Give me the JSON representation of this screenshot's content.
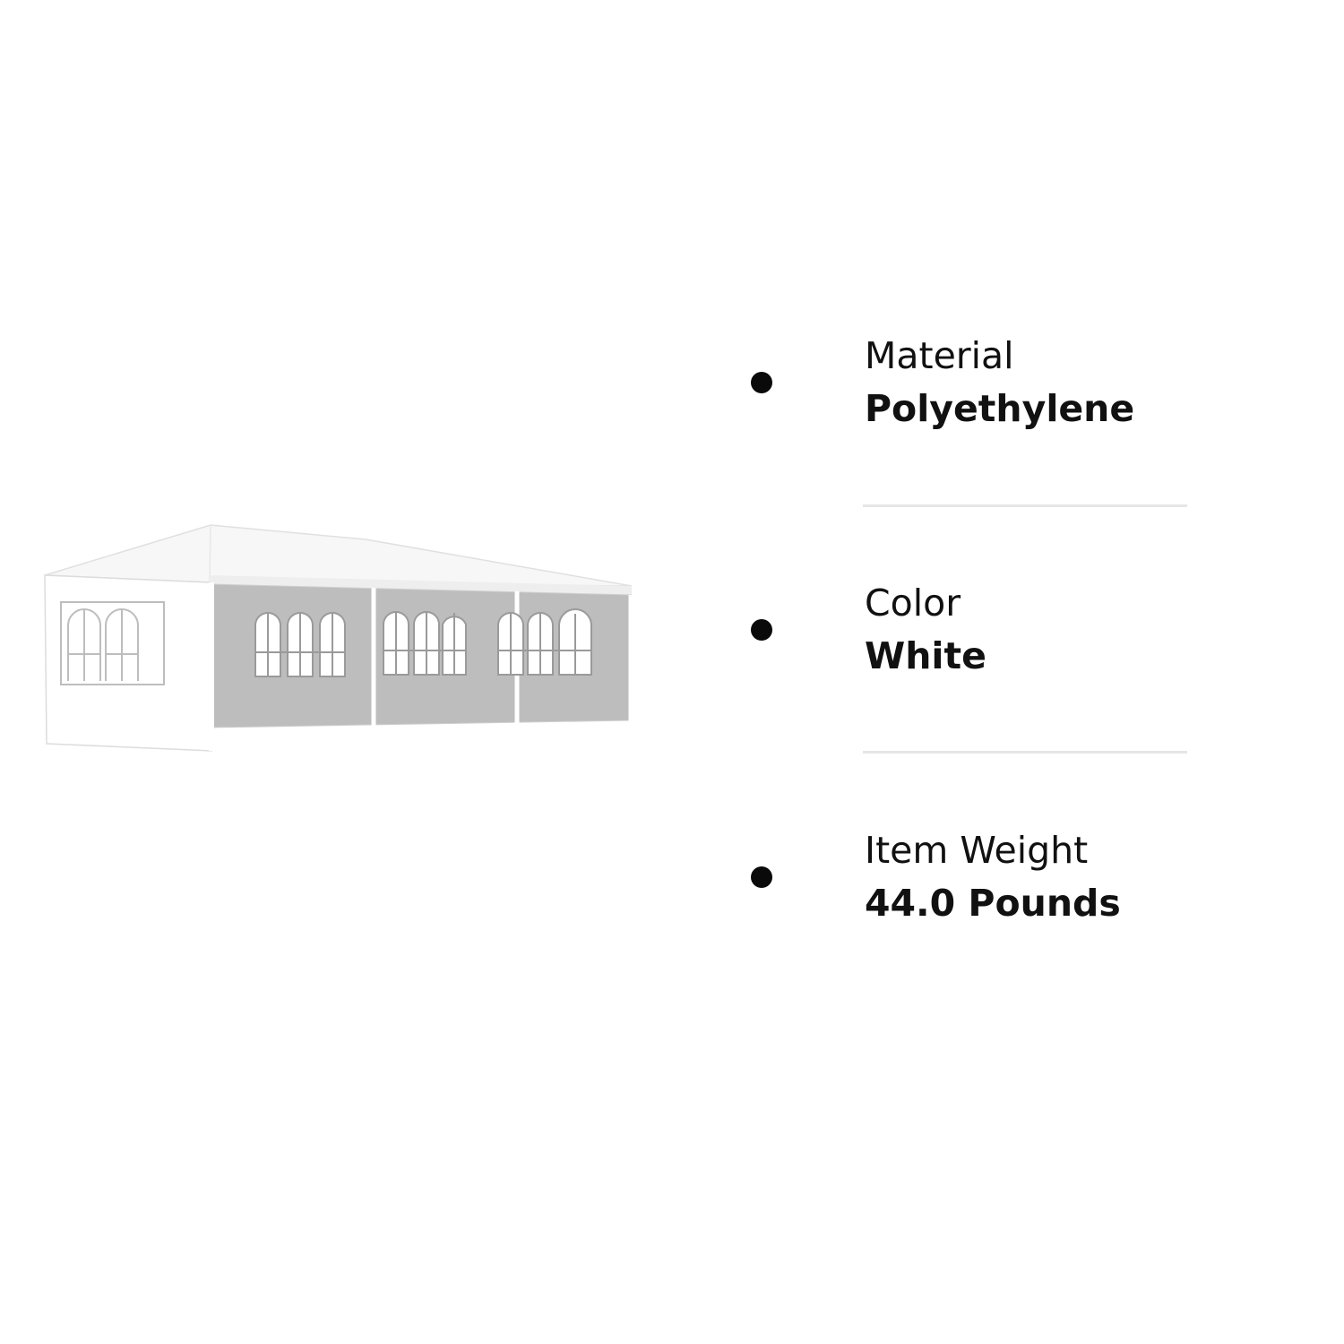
{
  "product_image": {
    "name": "white-party-tent",
    "colors": {
      "roof": "#f7f7f7",
      "side_wall": "#bdbdbd",
      "end_wall": "#ffffff",
      "window": "#ffffff",
      "outline": "#dcdcdc"
    }
  },
  "specs": [
    {
      "label": "Material",
      "value": "Polyethylene"
    },
    {
      "label": "Color",
      "value": "White"
    },
    {
      "label": "Item Weight",
      "value": "44.0 Pounds"
    }
  ],
  "bullet_color": "#0a0a0a",
  "divider_color": "#e6e6e6"
}
